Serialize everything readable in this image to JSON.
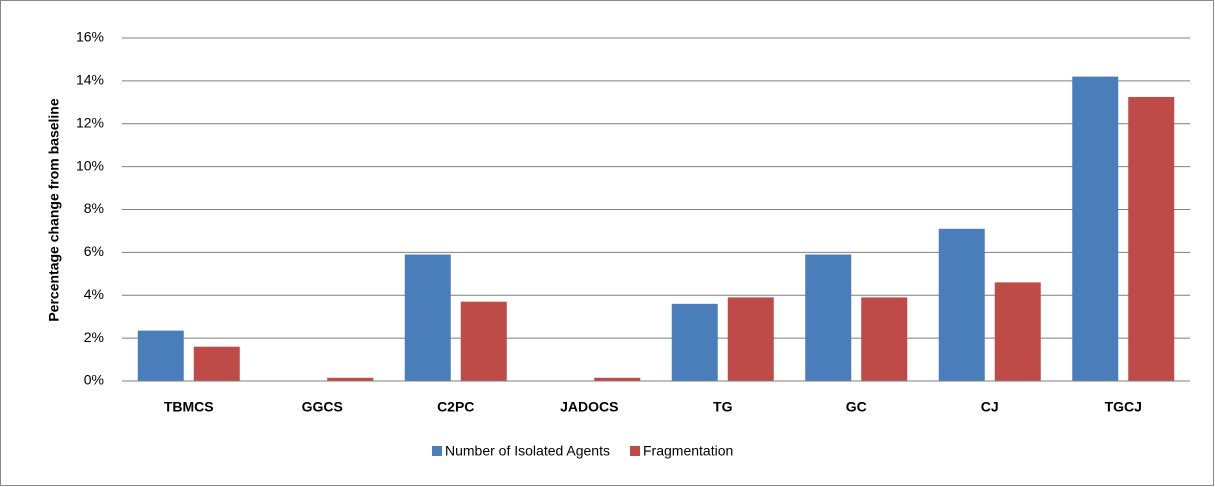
{
  "chart_data": {
    "type": "bar",
    "y_label": "Percentage change from baseline",
    "categories": [
      "TBMCS",
      "GGCS",
      "C2PC",
      "JADOCS",
      "TG",
      "GC",
      "CJ",
      "TGCJ"
    ],
    "series": [
      {
        "name": "Number of Isolated Agents",
        "color": "#4a7ebb",
        "values": [
          2.35,
          0,
          5.9,
          0,
          3.6,
          5.9,
          7.1,
          14.2
        ]
      },
      {
        "name": "Fragmentation",
        "color": "#be4b48",
        "values": [
          1.6,
          0.15,
          3.7,
          0.15,
          3.9,
          3.9,
          4.6,
          13.25
        ]
      }
    ],
    "ylim": [
      0,
      16
    ],
    "yticks": [
      {
        "value": 0,
        "label": "0%"
      },
      {
        "value": 2,
        "label": "2%"
      },
      {
        "value": 4,
        "label": "4%"
      },
      {
        "value": 6,
        "label": "6%"
      },
      {
        "value": 8,
        "label": "8%"
      },
      {
        "value": 10,
        "label": "10%"
      },
      {
        "value": 12,
        "label": "12%"
      },
      {
        "value": 14,
        "label": "14%"
      },
      {
        "value": 16,
        "label": "16%"
      }
    ],
    "grid": true
  }
}
